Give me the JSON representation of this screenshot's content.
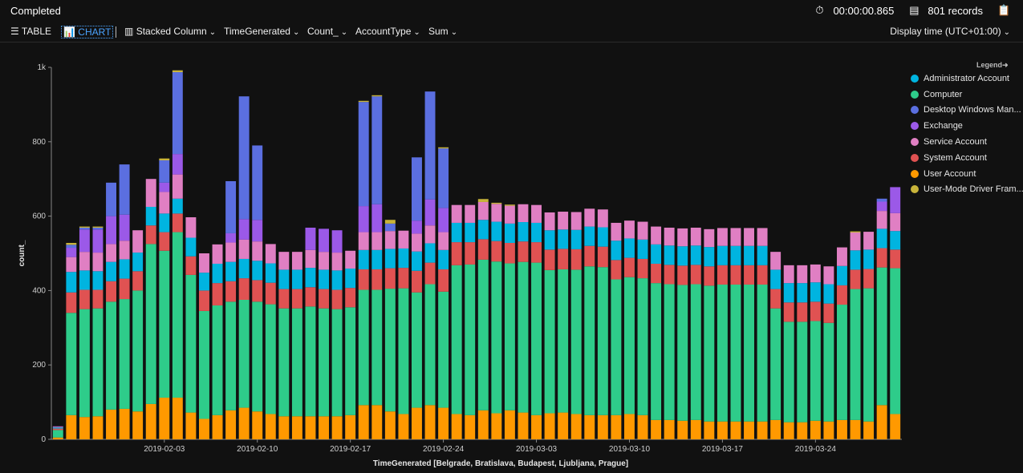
{
  "header": {
    "status": "Completed",
    "duration": "00:00:00.865",
    "records": "801 records"
  },
  "toolbar": {
    "table_label": "TABLE",
    "chart_label": "CHART",
    "chart_type": "Stacked Column",
    "x_column": "TimeGenerated",
    "y_column": "Count_",
    "split_column": "AccountType",
    "aggregation": "Sum",
    "display_time": "Display time (UTC+01:00)"
  },
  "legend_title": "Legend",
  "colors": {
    "background": "#111111",
    "accent": "#4aa3ff"
  },
  "chart_data": {
    "type": "bar",
    "stacked": true,
    "xlabel": "TimeGenerated [Belgrade, Bratislava, Budapest, Ljubljana, Prague]",
    "ylabel": "count_",
    "ylim": [
      0,
      1000
    ],
    "yticks": [
      "0",
      "200",
      "400",
      "600",
      "800",
      "1k"
    ],
    "xticks": [
      {
        "index": 8,
        "label": "2019-02-03"
      },
      {
        "index": 15,
        "label": "2019-02-10"
      },
      {
        "index": 22,
        "label": "2019-02-17"
      },
      {
        "index": 29,
        "label": "2019-02-24"
      },
      {
        "index": 36,
        "label": "2019-03-03"
      },
      {
        "index": 43,
        "label": "2019-03-10"
      },
      {
        "index": 50,
        "label": "2019-03-17"
      },
      {
        "index": 57,
        "label": "2019-03-24"
      }
    ],
    "grid": false,
    "legend_position": "right",
    "x": [
      "2019-01-26",
      "2019-01-27",
      "2019-01-28",
      "2019-01-29",
      "2019-01-30",
      "2019-01-31",
      "2019-02-01",
      "2019-02-02",
      "2019-02-03",
      "2019-02-04",
      "2019-02-05",
      "2019-02-06",
      "2019-02-07",
      "2019-02-08",
      "2019-02-09",
      "2019-02-10",
      "2019-02-11",
      "2019-02-12",
      "2019-02-13",
      "2019-02-14",
      "2019-02-15",
      "2019-02-16",
      "2019-02-17",
      "2019-02-18",
      "2019-02-19",
      "2019-02-20",
      "2019-02-21",
      "2019-02-22",
      "2019-02-23",
      "2019-02-24",
      "2019-02-25",
      "2019-02-26",
      "2019-02-27",
      "2019-02-28",
      "2019-03-01",
      "2019-03-02",
      "2019-03-03",
      "2019-03-04",
      "2019-03-05",
      "2019-03-06",
      "2019-03-07",
      "2019-03-08",
      "2019-03-09",
      "2019-03-10",
      "2019-03-11",
      "2019-03-12",
      "2019-03-13",
      "2019-03-14",
      "2019-03-15",
      "2019-03-16",
      "2019-03-17",
      "2019-03-18",
      "2019-03-19",
      "2019-03-20",
      "2019-03-21",
      "2019-03-22",
      "2019-03-23",
      "2019-03-24",
      "2019-03-25",
      "2019-03-26",
      "2019-03-27",
      "2019-03-28",
      "2019-03-29",
      "2019-03-30"
    ],
    "series": [
      {
        "name": "User Account",
        "color": "#ff9900",
        "values": [
          5,
          65,
          60,
          62,
          80,
          82,
          75,
          95,
          112,
          112,
          72,
          55,
          65,
          78,
          85,
          75,
          68,
          62,
          62,
          62,
          62,
          62,
          65,
          92,
          92,
          75,
          68,
          85,
          92,
          85,
          68,
          65,
          78,
          70,
          78,
          72,
          65,
          70,
          72,
          68,
          65,
          65,
          65,
          68,
          65,
          52,
          52,
          50,
          52,
          48,
          48,
          48,
          48,
          48,
          52,
          46,
          46,
          50,
          48,
          52,
          52,
          48,
          92,
          68
        ]
      },
      {
        "name": "Computer",
        "color": "#2ecc8a",
        "values": [
          20,
          275,
          290,
          290,
          290,
          295,
          325,
          430,
          395,
          445,
          370,
          290,
          295,
          292,
          290,
          295,
          295,
          290,
          290,
          295,
          290,
          288,
          290,
          310,
          310,
          330,
          338,
          310,
          325,
          312,
          400,
          405,
          405,
          408,
          395,
          405,
          410,
          385,
          385,
          388,
          400,
          398,
          365,
          368,
          368,
          368,
          365,
          365,
          365,
          365,
          368,
          368,
          368,
          368,
          300,
          270,
          270,
          268,
          265,
          310,
          352,
          358,
          370,
          392
        ]
      },
      {
        "name": "System Account",
        "color": "#e05252",
        "values": [
          4,
          55,
          52,
          50,
          55,
          55,
          52,
          50,
          50,
          50,
          50,
          55,
          60,
          55,
          58,
          58,
          58,
          52,
          52,
          52,
          52,
          52,
          52,
          55,
          55,
          55,
          55,
          58,
          58,
          60,
          62,
          60,
          55,
          55,
          55,
          55,
          55,
          55,
          55,
          55,
          55,
          55,
          52,
          52,
          52,
          52,
          52,
          52,
          52,
          52,
          52,
          52,
          52,
          52,
          52,
          52,
          52,
          52,
          52,
          52,
          52,
          52,
          52,
          50
        ]
      },
      {
        "name": "Administrator Account",
        "color": "#00b4e0",
        "values": [
          3,
          55,
          52,
          50,
          52,
          52,
          50,
          50,
          50,
          40,
          50,
          48,
          52,
          52,
          52,
          52,
          52,
          52,
          52,
          52,
          52,
          52,
          52,
          52,
          52,
          52,
          52,
          52,
          52,
          52,
          52,
          52,
          52,
          52,
          52,
          52,
          52,
          52,
          52,
          52,
          52,
          52,
          52,
          52,
          52,
          52,
          52,
          52,
          52,
          52,
          52,
          52,
          52,
          52,
          52,
          52,
          52,
          52,
          52,
          52,
          52,
          52,
          52,
          50
        ]
      },
      {
        "name": "Service Account",
        "color": "#e07fc3",
        "values": [
          2,
          40,
          50,
          50,
          48,
          50,
          60,
          75,
          58,
          65,
          55,
          52,
          52,
          52,
          52,
          52,
          52,
          48,
          48,
          48,
          48,
          48,
          48,
          48,
          48,
          48,
          48,
          48,
          48,
          48,
          48,
          48,
          48,
          48,
          48,
          48,
          48,
          48,
          48,
          48,
          48,
          48,
          48,
          48,
          48,
          48,
          48,
          48,
          48,
          48,
          48,
          48,
          48,
          48,
          48,
          48,
          48,
          48,
          48,
          50,
          48,
          48,
          48,
          48
        ]
      },
      {
        "name": "Exchange",
        "color": "#9b59e8",
        "values": [
          1,
          25,
          60,
          62,
          75,
          70,
          0,
          0,
          25,
          55,
          0,
          0,
          0,
          25,
          55,
          58,
          0,
          0,
          0,
          60,
          62,
          60,
          0,
          70,
          75,
          0,
          0,
          35,
          70,
          65,
          0,
          0,
          0,
          0,
          0,
          0,
          0,
          0,
          0,
          0,
          0,
          0,
          0,
          0,
          0,
          0,
          0,
          0,
          0,
          0,
          0,
          0,
          0,
          0,
          0,
          0,
          0,
          0,
          0,
          0,
          0,
          0,
          25,
          70
        ]
      },
      {
        "name": "Desktop Windows Manager",
        "color": "#5b6fe0",
        "values": [
          0,
          8,
          5,
          5,
          90,
          135,
          0,
          0,
          60,
          220,
          0,
          0,
          0,
          140,
          330,
          200,
          0,
          0,
          0,
          0,
          0,
          0,
          0,
          280,
          290,
          20,
          0,
          170,
          290,
          160,
          0,
          0,
          0,
          0,
          0,
          0,
          0,
          0,
          0,
          0,
          0,
          0,
          0,
          0,
          0,
          0,
          0,
          0,
          0,
          0,
          0,
          0,
          0,
          0,
          0,
          0,
          0,
          0,
          0,
          0,
          0,
          0,
          8,
          0
        ]
      },
      {
        "name": "User-Mode Driver Framework",
        "color": "#c8b43a",
        "values": [
          0,
          5,
          3,
          3,
          0,
          0,
          0,
          0,
          5,
          5,
          0,
          0,
          0,
          0,
          0,
          0,
          0,
          0,
          0,
          0,
          0,
          0,
          0,
          3,
          3,
          10,
          0,
          0,
          0,
          3,
          0,
          0,
          8,
          3,
          3,
          0,
          0,
          0,
          0,
          0,
          0,
          0,
          0,
          0,
          0,
          0,
          0,
          0,
          0,
          0,
          0,
          0,
          0,
          0,
          0,
          0,
          0,
          0,
          0,
          0,
          3,
          0,
          0,
          0
        ]
      }
    ]
  }
}
